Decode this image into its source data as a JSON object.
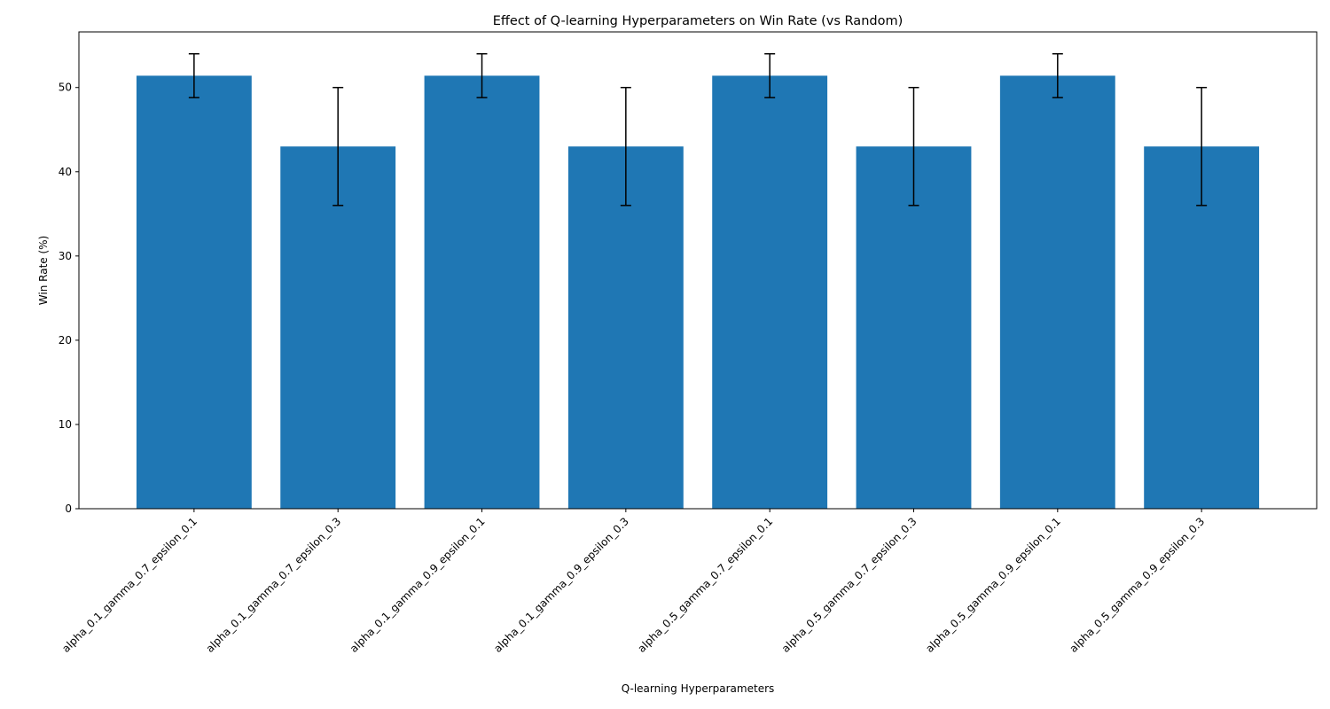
{
  "chart_data": {
    "type": "bar",
    "title": "Effect of Q-learning Hyperparameters on Win Rate (vs Random)",
    "xlabel": "Q-learning Hyperparameters",
    "ylabel": "Win Rate (%)",
    "categories": [
      "alpha_0.1_gamma_0.7_epsilon_0.1",
      "alpha_0.1_gamma_0.7_epsilon_0.3",
      "alpha_0.1_gamma_0.9_epsilon_0.1",
      "alpha_0.1_gamma_0.9_epsilon_0.3",
      "alpha_0.5_gamma_0.7_epsilon_0.1",
      "alpha_0.5_gamma_0.7_epsilon_0.3",
      "alpha_0.5_gamma_0.9_epsilon_0.1",
      "alpha_0.5_gamma_0.9_epsilon_0.3"
    ],
    "values": [
      51.4,
      43.0,
      51.4,
      43.0,
      51.4,
      43.0,
      51.4,
      43.0
    ],
    "errors": [
      2.6,
      7.0,
      2.6,
      7.0,
      2.6,
      7.0,
      2.6,
      7.0
    ],
    "ylim": [
      0,
      56.6
    ],
    "yticks": [
      0,
      10,
      20,
      30,
      40,
      50
    ],
    "grid": false,
    "legend": "none",
    "bar_color": "#1f77b4",
    "error_color": "#000000"
  }
}
